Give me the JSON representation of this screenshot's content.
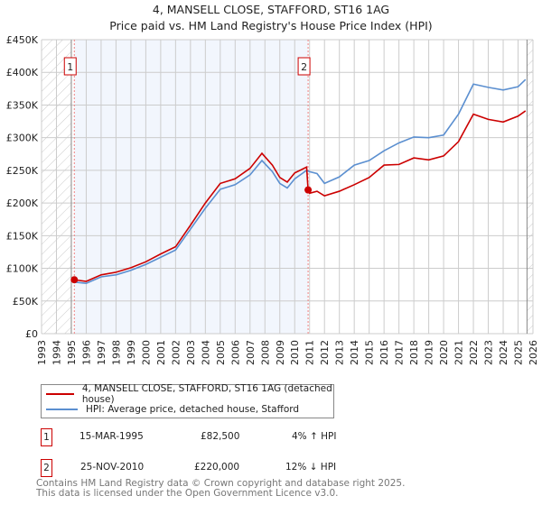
{
  "title": "4, MANSELL CLOSE, STAFFORD, ST16 1AG",
  "subtitle": "Price paid vs. HM Land Registry's House Price Index (HPI)",
  "chart_data": {
    "type": "line",
    "title": "4, MANSELL CLOSE, STAFFORD, ST16 1AG",
    "subtitle": "Price paid vs. HM Land Registry's House Price Index (HPI)",
    "xlim": [
      1993,
      2026
    ],
    "ylim": [
      0,
      450000
    ],
    "x_ticks": [
      "1993",
      "1994",
      "1995",
      "1996",
      "1997",
      "1998",
      "1999",
      "2000",
      "2001",
      "2002",
      "2003",
      "2004",
      "2005",
      "2006",
      "2007",
      "2008",
      "2009",
      "2010",
      "2011",
      "2012",
      "2013",
      "2014",
      "2015",
      "2016",
      "2017",
      "2018",
      "2019",
      "2020",
      "2021",
      "2022",
      "2023",
      "2024",
      "2025",
      "2026"
    ],
    "y_ticks": [
      {
        "v": 0,
        "label": "£0"
      },
      {
        "v": 50000,
        "label": "£50K"
      },
      {
        "v": 100000,
        "label": "£100K"
      },
      {
        "v": 150000,
        "label": "£150K"
      },
      {
        "v": 200000,
        "label": "£200K"
      },
      {
        "v": 250000,
        "label": "£250K"
      },
      {
        "v": 300000,
        "label": "£300K"
      },
      {
        "v": 350000,
        "label": "£350K"
      },
      {
        "v": 400000,
        "label": "£400K"
      },
      {
        "v": 450000,
        "label": "£450K"
      }
    ],
    "grid": true,
    "hatched_before": 1995.0,
    "hatched_after": 2025.6,
    "shaded_between": [
      1995.2,
      2010.9
    ],
    "series": [
      {
        "name": "4, MANSELL CLOSE, STAFFORD, ST16 1AG (detached house)",
        "color": "#cc0000",
        "x": [
          1995.2,
          1996,
          1997,
          1998,
          1999,
          2000,
          2001,
          2002,
          2003,
          2004,
          2005,
          2006,
          2007,
          2007.8,
          2008.5,
          2009,
          2009.5,
          2010,
          2010.8,
          2010.9,
          2011,
          2011.5,
          2012,
          2013,
          2014,
          2015,
          2016,
          2017,
          2018,
          2019,
          2020,
          2021,
          2022,
          2023,
          2024,
          2025,
          2025.5
        ],
        "y": [
          82500,
          80000,
          90000,
          94000,
          101000,
          110000,
          122000,
          133000,
          166000,
          200000,
          230000,
          237000,
          253000,
          276000,
          258000,
          239000,
          232000,
          246000,
          255000,
          220000,
          215000,
          218000,
          211000,
          218000,
          228000,
          239000,
          258000,
          259000,
          269000,
          266000,
          272000,
          294000,
          336000,
          328000,
          324000,
          333000,
          341000
        ]
      },
      {
        "name": "HPI: Average price, detached house, Stafford",
        "color": "#5b8fd0",
        "x": [
          1995.2,
          1996,
          1997,
          1998,
          1999,
          2000,
          2001,
          2002,
          2003,
          2004,
          2005,
          2006,
          2007,
          2007.8,
          2008.5,
          2009,
          2009.5,
          2010,
          2010.8,
          2011,
          2011.5,
          2012,
          2013,
          2014,
          2015,
          2016,
          2017,
          2018,
          2019,
          2020,
          2021,
          2022,
          2023,
          2024,
          2025,
          2025.5
        ],
        "y": [
          79000,
          77000,
          87000,
          90000,
          97000,
          106000,
          117000,
          128000,
          160000,
          192000,
          221000,
          228000,
          243000,
          265000,
          248000,
          230000,
          223000,
          237000,
          250000,
          248000,
          245000,
          230000,
          240000,
          258000,
          265000,
          280000,
          292000,
          301000,
          300000,
          304000,
          336000,
          382000,
          377000,
          373000,
          378000,
          389000
        ]
      }
    ],
    "annotations": [
      {
        "label": "1",
        "x": 1995.2,
        "y": 82500
      },
      {
        "label": "2",
        "x": 2010.9,
        "y": 220000
      }
    ]
  },
  "legend": [
    {
      "label": "4, MANSELL CLOSE, STAFFORD, ST16 1AG (detached house)",
      "color": "#cc0000"
    },
    {
      "label": "HPI: Average price, detached house, Stafford",
      "color": "#5b8fd0"
    }
  ],
  "sales": [
    {
      "num": "1",
      "date": "15-MAR-1995",
      "price": "£82,500",
      "hpi": "4% ↑ HPI"
    },
    {
      "num": "2",
      "date": "25-NOV-2010",
      "price": "£220,000",
      "hpi": "12% ↓ HPI"
    }
  ],
  "footer": [
    "Contains HM Land Registry data © Crown copyright and database right 2025.",
    "This data is licensed under the Open Government Licence v3.0."
  ]
}
